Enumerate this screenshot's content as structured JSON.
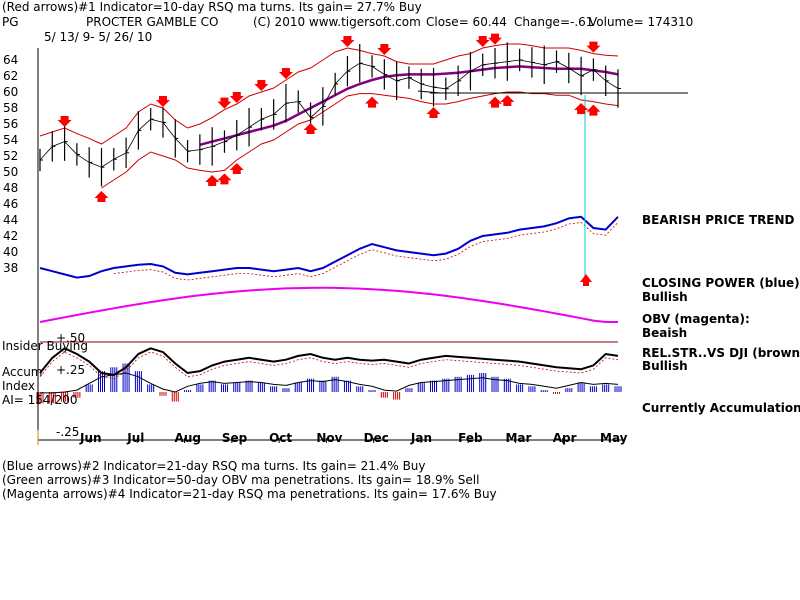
{
  "header": {
    "line1": "(Red arrows)#1 Indicator=10-day RSQ ma turns. Its gain= 27.7% Buy",
    "ticker": "PG",
    "company": "PROCTER GAMBLE CO",
    "copyright": "(C) 2010 www.tigersoft.com",
    "close": "Close=  60.44",
    "change": "Change=-.61",
    "volume": "Volume= 174310",
    "date_range": "5/ 13/ 9- 5/ 26/ 10"
  },
  "footer": {
    "line1": "(Blue arrows)#2 Indicator=21-day RSQ ma turns. Its gain= 21.4% Buy",
    "line2": "(Green arrows)#3 Indicator=50-day OBV ma penetrations. Its gain= 18.9% Sell",
    "line3": "(Magenta arrows)#4 Indicator=21-day RSQ ma penetrations. Its gain= 17.6% Buy"
  },
  "side_labels": {
    "trend": "BEARISH PRICE TREND",
    "cp_title": "CLOSING POWER (blue):",
    "cp_value": "Bullish",
    "obv_title": "OBV (magenta):",
    "obv_value": "Beaish",
    "rs_title": "REL.STR..VS DJI (brown):",
    "rs_value": "Bullish",
    "accum_status": "Currently Accumulation"
  },
  "accum_labels": {
    "insider": "Insider Buying",
    "plus50": "+.50",
    "plus25": "+.25",
    "accum": "Accum",
    "index": "Index",
    "ai": "AI= 154/200",
    "minus25": "-.25"
  },
  "colors": {
    "price": "#000000",
    "band": "#cc0000",
    "ma": "#800080",
    "closing_power": "#0000cc",
    "obv": "#ee00ee",
    "up_arrow": "#ff0000",
    "support": "#000000",
    "cyan_line": "#00cccc",
    "accum_pos": "#0000cc",
    "accum_neg": "#cc0000"
  },
  "chart_data": {
    "type": "line",
    "title": "PROCTER GAMBLE CO",
    "x_labels": [
      "Jun",
      "Jul",
      "Aug",
      "Sep",
      "Oct",
      "Nov",
      "Dec",
      "Jan",
      "Feb",
      "Mar",
      "Apr",
      "May"
    ],
    "y_ticks": [
      64,
      62,
      60,
      58,
      56,
      54,
      52,
      50,
      48,
      46,
      44,
      42,
      40,
      38
    ],
    "ylim": [
      36.5,
      65.5
    ],
    "price": [
      51.5,
      53.2,
      53.8,
      52.2,
      51.2,
      50.6,
      51.6,
      52.4,
      55.2,
      56.6,
      56.2,
      54.2,
      52.6,
      52.8,
      53.2,
      53.8,
      54.6,
      55.6,
      56.6,
      57.2,
      58.6,
      58.8,
      56.8,
      58.2,
      61.0,
      62.6,
      63.6,
      63.2,
      62.2,
      61.4,
      61.8,
      61.0,
      60.6,
      60.4,
      61.4,
      62.6,
      63.4,
      63.6,
      63.8,
      64.0,
      63.7,
      63.4,
      63.8,
      63.0,
      62.0,
      62.8,
      61.4,
      60.44
    ],
    "ma": [
      null,
      null,
      null,
      null,
      null,
      null,
      null,
      null,
      null,
      null,
      null,
      null,
      null,
      53.4,
      53.8,
      54.2,
      54.6,
      55.0,
      55.4,
      55.8,
      56.4,
      57.2,
      58.0,
      58.8,
      59.6,
      60.4,
      61.0,
      61.5,
      61.9,
      62.1,
      62.2,
      62.2,
      62.2,
      62.3,
      62.4,
      62.6,
      62.8,
      63.0,
      63.1,
      63.2,
      63.1,
      63.0,
      62.9,
      62.9,
      62.9,
      62.7,
      62.5,
      62.2
    ],
    "upper_band": [
      54.5,
      55.0,
      55.5,
      54.8,
      54.2,
      53.5,
      54.5,
      55.5,
      57.5,
      58.5,
      58.0,
      56.5,
      55.5,
      56.0,
      56.8,
      57.8,
      58.5,
      59.5,
      60.0,
      60.5,
      61.5,
      62.5,
      63.0,
      64.0,
      65.0,
      65.5,
      65.2,
      64.8,
      64.5,
      63.8,
      63.5,
      63.5,
      63.5,
      64.0,
      64.5,
      64.8,
      65.5,
      65.8,
      66.0,
      66.0,
      65.8,
      65.5,
      65.5,
      65.5,
      65.2,
      64.8,
      64.6,
      64.5
    ],
    "lower_band": [
      null,
      null,
      null,
      null,
      null,
      48.0,
      49.0,
      50.0,
      51.5,
      52.5,
      52.0,
      51.5,
      50.5,
      50.2,
      50.0,
      50.2,
      51.5,
      52.5,
      53.5,
      54.0,
      55.0,
      56.0,
      56.5,
      57.5,
      58.5,
      59.5,
      59.8,
      59.8,
      59.6,
      59.4,
      59.2,
      58.8,
      58.5,
      58.5,
      58.8,
      59.2,
      59.5,
      59.8,
      60.0,
      60.0,
      59.8,
      59.8,
      59.6,
      59.6,
      59.0,
      58.8,
      58.5,
      58.3
    ],
    "closing_power": [
      38.0,
      37.6,
      37.2,
      36.8,
      37.0,
      37.6,
      38.0,
      38.2,
      38.4,
      38.5,
      38.2,
      37.4,
      37.2,
      37.4,
      37.6,
      37.8,
      38.0,
      38.0,
      37.8,
      37.6,
      37.8,
      38.0,
      37.6,
      38.0,
      38.8,
      39.6,
      40.4,
      41.0,
      40.6,
      40.2,
      40.0,
      39.8,
      39.6,
      39.8,
      40.4,
      41.4,
      42.0,
      42.2,
      42.4,
      42.8,
      43.0,
      43.2,
      43.6,
      44.2,
      44.4,
      43.0,
      42.8,
      44.4
    ],
    "obv_dots": [
      "Jun",
      "Jul",
      "Aug",
      "Sep",
      "Oct",
      "Nov",
      "Dec",
      "Jan",
      "Feb",
      "Mar",
      "Apr",
      "May"
    ],
    "accum_index": [
      -0.12,
      -0.12,
      -0.1,
      -0.06,
      0.08,
      0.22,
      0.26,
      0.3,
      0.22,
      0.08,
      -0.04,
      -0.1,
      0.02,
      0.08,
      0.12,
      0.08,
      0.1,
      0.12,
      0.1,
      0.06,
      0.04,
      0.1,
      0.14,
      0.12,
      0.16,
      0.12,
      0.06,
      0.02,
      -0.06,
      -0.08,
      0.04,
      0.1,
      0.12,
      0.14,
      0.16,
      0.18,
      0.2,
      0.16,
      0.14,
      0.08,
      0.06,
      0.02,
      -0.02,
      0.04,
      0.1,
      0.06,
      0.08,
      0.06
    ],
    "rel_strength": [
      0.2,
      0.36,
      0.46,
      0.4,
      0.32,
      0.2,
      0.18,
      0.26,
      0.4,
      0.46,
      0.42,
      0.3,
      0.2,
      0.22,
      0.28,
      0.32,
      0.34,
      0.36,
      0.34,
      0.32,
      0.34,
      0.38,
      0.4,
      0.36,
      0.34,
      0.36,
      0.34,
      0.33,
      0.34,
      0.32,
      0.3,
      0.34,
      0.36,
      0.38,
      0.37,
      0.36,
      0.35,
      0.34,
      0.33,
      0.32,
      0.3,
      0.28,
      0.26,
      0.25,
      0.24,
      0.28,
      0.4,
      0.38
    ]
  }
}
